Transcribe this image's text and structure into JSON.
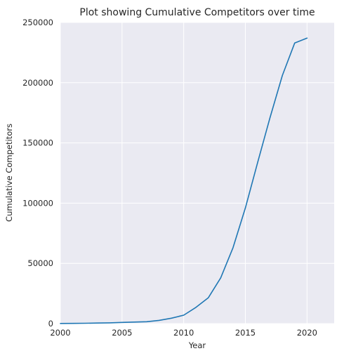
{
  "chart_data": {
    "type": "line",
    "title": "Plot showing Cumulative Competitors over time",
    "xlabel": "Year",
    "ylabel": "Cumulative Competitors",
    "xlim": [
      2000,
      2022.2
    ],
    "ylim": [
      0,
      250000
    ],
    "x_ticks": [
      2000,
      2005,
      2010,
      2015,
      2020
    ],
    "y_ticks": [
      0,
      50000,
      100000,
      150000,
      200000,
      250000
    ],
    "grid": true,
    "legend": "none",
    "colors": {
      "line": "#1f77b4",
      "plot_background": "#eaeaf2",
      "grid": "#ffffff",
      "text": "#262626"
    },
    "series": [
      {
        "x": [
          2000,
          2001,
          2002,
          2003,
          2004,
          2005,
          2006,
          2007,
          2008,
          2009,
          2010,
          2011,
          2012,
          2013,
          2014,
          2015,
          2016,
          2017,
          2018,
          2019,
          2020
        ],
        "values": [
          100,
          200,
          300,
          450,
          650,
          1000,
          1300,
          1600,
          2700,
          4500,
          7000,
          13500,
          21500,
          38000,
          63000,
          96000,
          134000,
          171000,
          206000,
          233000,
          237000
        ]
      }
    ]
  }
}
